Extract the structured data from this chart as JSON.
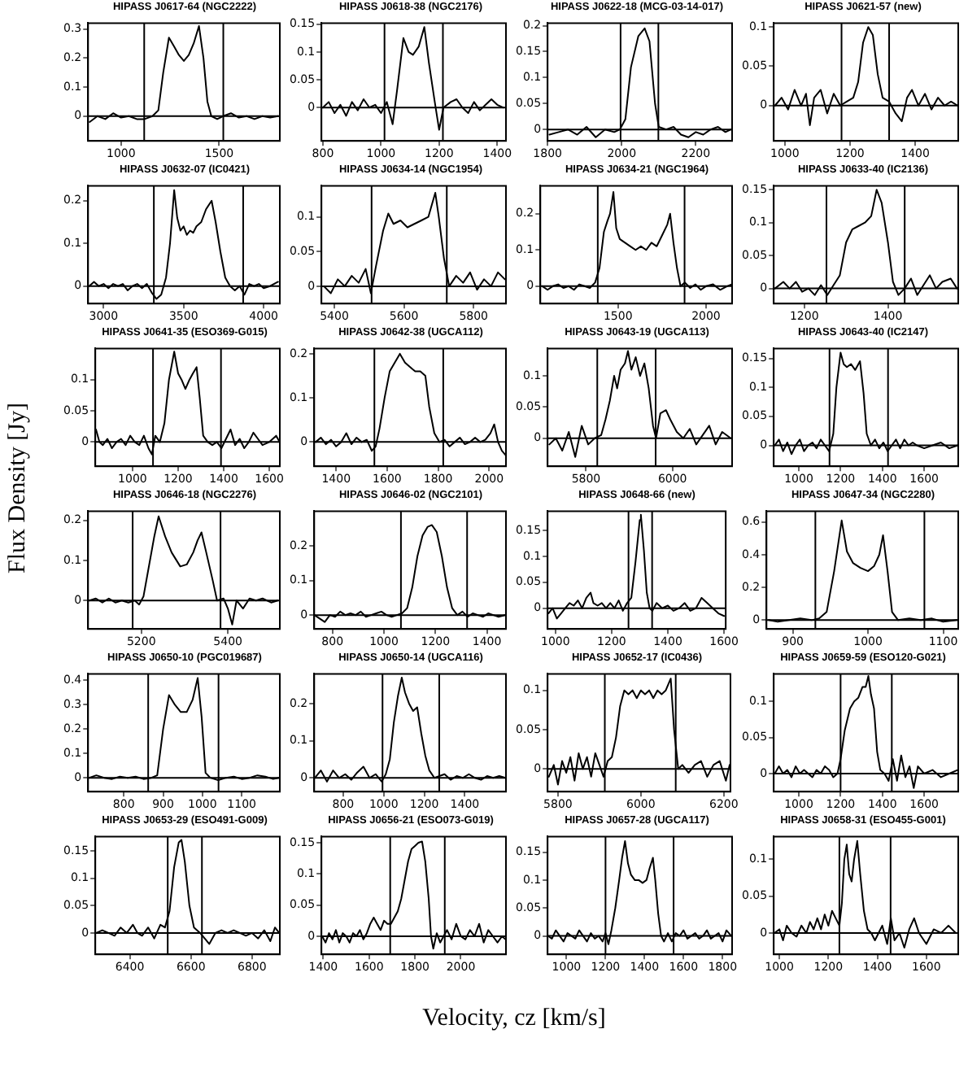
{
  "chart_data": [
    {
      "type": "line",
      "title": "HIPASS J0617-64 (NGC2222)",
      "color": "#000000",
      "xlim": [
        832,
        1809
      ],
      "xticks": [
        1000,
        1500
      ],
      "ylim": [
        -0.085,
        0.32
      ],
      "yticks": [
        0,
        0.1,
        0.2,
        0.3
      ],
      "ref_lines": [
        {
          "axis": "x",
          "value": 1118
        },
        {
          "axis": "x",
          "value": 1521
        },
        {
          "axis": "y",
          "value": 0
        }
      ],
      "x": [
        840,
        880,
        920,
        960,
        1000,
        1040,
        1080,
        1120,
        1160,
        1190,
        1215,
        1244,
        1270,
        1295,
        1320,
        1345,
        1370,
        1397,
        1420,
        1440,
        1460,
        1490,
        1520,
        1560,
        1600,
        1640,
        1680,
        1720,
        1760,
        1800
      ],
      "values": [
        -0.02,
        0,
        -0.01,
        0.01,
        -0.005,
        0,
        -0.01,
        -0.01,
        0,
        0.02,
        0.15,
        0.27,
        0.24,
        0.21,
        0.19,
        0.21,
        0.25,
        0.31,
        0.2,
        0.05,
        0,
        -0.01,
        0,
        0.01,
        -0.005,
        0,
        -0.01,
        0,
        -0.005,
        0
      ]
    },
    {
      "type": "line",
      "title": "HIPASS J0618-38 (NGC2176)",
      "color": "#000000",
      "xlim": [
        795,
        1430
      ],
      "xticks": [
        800,
        1000,
        1200,
        1400
      ],
      "ylim": [
        -0.06,
        0.152
      ],
      "yticks": [
        0,
        0.05,
        0.1,
        0.15
      ],
      "ref_lines": [
        {
          "axis": "x",
          "value": 1012
        },
        {
          "axis": "x",
          "value": 1213
        },
        {
          "axis": "y",
          "value": 0
        }
      ],
      "x": [
        800,
        820,
        840,
        860,
        880,
        900,
        920,
        940,
        960,
        980,
        1000,
        1020,
        1040,
        1055,
        1077,
        1095,
        1110,
        1130,
        1149,
        1165,
        1185,
        1200,
        1215,
        1240,
        1260,
        1280,
        1300,
        1320,
        1340,
        1360,
        1380,
        1400,
        1420
      ],
      "values": [
        0,
        0.01,
        -0.01,
        0.005,
        -0.015,
        0.01,
        -0.005,
        0.015,
        0,
        0.005,
        -0.01,
        0.01,
        -0.03,
        0.03,
        0.125,
        0.1,
        0.095,
        0.11,
        0.145,
        0.08,
        0.01,
        -0.04,
        0,
        0.01,
        0.015,
        0,
        -0.01,
        0.01,
        -0.005,
        0.005,
        0.015,
        0.005,
        0
      ]
    },
    {
      "type": "line",
      "title": "HIPASS J0622-18 (MCG-03-14-017)",
      "color": "#000000",
      "xlim": [
        1800,
        2298
      ],
      "xticks": [
        1800,
        2000,
        2200
      ],
      "ylim": [
        -0.022,
        0.205
      ],
      "yticks": [
        0,
        0.05,
        0.1,
        0.15,
        0.2
      ],
      "ref_lines": [
        {
          "axis": "x",
          "value": 1997
        },
        {
          "axis": "x",
          "value": 2099
        },
        {
          "axis": "y",
          "value": 0
        }
      ],
      "x": [
        1805,
        1830,
        1855,
        1880,
        1905,
        1930,
        1955,
        1980,
        1995,
        2010,
        2025,
        2045,
        2062,
        2075,
        2090,
        2100,
        2120,
        2140,
        2160,
        2180,
        2200,
        2220,
        2240,
        2260,
        2280,
        2295
      ],
      "values": [
        -0.01,
        -0.005,
        0,
        -0.01,
        0.005,
        -0.015,
        0,
        -0.005,
        0,
        0.02,
        0.12,
        0.18,
        0.195,
        0.17,
        0.05,
        0.005,
        0,
        0.005,
        -0.01,
        -0.015,
        -0.005,
        -0.01,
        0,
        0.005,
        -0.005,
        0
      ]
    },
    {
      "type": "line",
      "title": "HIPASS J0621-57 (new)",
      "color": "#000000",
      "xlim": [
        966,
        1532
      ],
      "xticks": [
        1000,
        1200,
        1400
      ],
      "ylim": [
        -0.045,
        0.105
      ],
      "yticks": [
        0,
        0.05,
        0.1
      ],
      "ref_lines": [
        {
          "axis": "x",
          "value": 1174
        },
        {
          "axis": "x",
          "value": 1320
        },
        {
          "axis": "y",
          "value": 0
        }
      ],
      "x": [
        970,
        990,
        1010,
        1030,
        1050,
        1065,
        1077,
        1090,
        1110,
        1130,
        1150,
        1170,
        1190,
        1210,
        1225,
        1240,
        1256,
        1270,
        1285,
        1300,
        1320,
        1340,
        1359,
        1375,
        1390,
        1410,
        1430,
        1450,
        1470,
        1490,
        1510,
        1530
      ],
      "values": [
        0,
        0.01,
        -0.005,
        0.02,
        0,
        0.015,
        -0.025,
        0.01,
        0.02,
        -0.01,
        0.015,
        0,
        0.005,
        0.01,
        0.03,
        0.08,
        0.1,
        0.09,
        0.04,
        0.01,
        0.005,
        -0.01,
        -0.02,
        0.01,
        0.02,
        0,
        0.015,
        -0.005,
        0.01,
        0,
        0.005,
        0
      ]
    },
    {
      "type": "line",
      "title": "HIPASS J0632-07 (IC0421)",
      "color": "#000000",
      "xlim": [
        2903,
        4101
      ],
      "xticks": [
        3000,
        3500,
        4000
      ],
      "ylim": [
        -0.041,
        0.235
      ],
      "yticks": [
        0,
        0.1,
        0.2
      ],
      "ref_lines": [
        {
          "axis": "x",
          "value": 3314
        },
        {
          "axis": "x",
          "value": 3872
        },
        {
          "axis": "y",
          "value": 0
        }
      ],
      "x": [
        2910,
        2940,
        2970,
        3000,
        3030,
        3060,
        3090,
        3120,
        3150,
        3180,
        3210,
        3240,
        3270,
        3300,
        3330,
        3360,
        3390,
        3415,
        3441,
        3460,
        3480,
        3500,
        3520,
        3540,
        3560,
        3580,
        3610,
        3640,
        3675,
        3700,
        3730,
        3760,
        3790,
        3820,
        3850,
        3880,
        3910,
        3940,
        3970,
        4000,
        4040,
        4090
      ],
      "values": [
        0,
        0.01,
        0,
        0.005,
        -0.005,
        0.005,
        0,
        0.005,
        -0.01,
        0,
        0.005,
        -0.005,
        0.005,
        -0.015,
        -0.03,
        -0.02,
        0.02,
        0.1,
        0.225,
        0.16,
        0.13,
        0.14,
        0.12,
        0.13,
        0.125,
        0.14,
        0.15,
        0.18,
        0.2,
        0.15,
        0.08,
        0.02,
        0,
        -0.01,
        0,
        -0.02,
        0.005,
        0,
        0.005,
        -0.005,
        0,
        0.01
      ]
    },
    {
      "type": "line",
      "title": "HIPASS J0634-14 (NGC1954)",
      "color": "#000000",
      "xlim": [
        5363,
        5893
      ],
      "xticks": [
        5400,
        5600,
        5800
      ],
      "ylim": [
        -0.025,
        0.145
      ],
      "yticks": [
        0,
        0.05,
        0.1
      ],
      "ref_lines": [
        {
          "axis": "x",
          "value": 5507
        },
        {
          "axis": "x",
          "value": 5723
        },
        {
          "axis": "y",
          "value": 0
        }
      ],
      "x": [
        5370,
        5390,
        5410,
        5430,
        5450,
        5470,
        5490,
        5505,
        5520,
        5540,
        5555,
        5570,
        5590,
        5610,
        5630,
        5650,
        5670,
        5690,
        5700,
        5715,
        5730,
        5750,
        5770,
        5790,
        5810,
        5830,
        5850,
        5870,
        5890
      ],
      "values": [
        0,
        -0.01,
        0.01,
        0,
        0.015,
        0.005,
        0.025,
        -0.01,
        0.03,
        0.08,
        0.105,
        0.09,
        0.095,
        0.085,
        0.09,
        0.095,
        0.1,
        0.135,
        0.1,
        0.04,
        0,
        0.015,
        0.005,
        0.02,
        -0.005,
        0.01,
        0,
        0.02,
        0.01
      ]
    },
    {
      "type": "line",
      "title": "HIPASS J0634-21 (NGC1964)",
      "color": "#000000",
      "xlim": [
        1059,
        2148
      ],
      "xticks": [
        1500,
        2000
      ],
      "ylim": [
        -0.048,
        0.277
      ],
      "yticks": [
        0,
        0.1,
        0.2
      ],
      "ref_lines": [
        {
          "axis": "x",
          "value": 1385
        },
        {
          "axis": "x",
          "value": 1878
        },
        {
          "axis": "y",
          "value": 0
        }
      ],
      "x": [
        1070,
        1100,
        1130,
        1160,
        1190,
        1220,
        1250,
        1280,
        1310,
        1340,
        1370,
        1395,
        1420,
        1440,
        1455,
        1474,
        1490,
        1510,
        1540,
        1570,
        1600,
        1630,
        1660,
        1690,
        1720,
        1750,
        1780,
        1796,
        1815,
        1835,
        1855,
        1880,
        1910,
        1940,
        1970,
        2000,
        2040,
        2080,
        2120,
        2145
      ],
      "values": [
        0,
        -0.01,
        0,
        0.005,
        -0.005,
        0,
        -0.01,
        0.005,
        0,
        -0.005,
        0.01,
        0.05,
        0.15,
        0.18,
        0.2,
        0.26,
        0.16,
        0.13,
        0.12,
        0.11,
        0.1,
        0.11,
        0.1,
        0.12,
        0.11,
        0.14,
        0.17,
        0.2,
        0.12,
        0.05,
        0,
        0.01,
        -0.005,
        0.005,
        -0.01,
        0,
        0.005,
        -0.01,
        0,
        0.005
      ]
    },
    {
      "type": "line",
      "title": "HIPASS J0633-40 (IC2136)",
      "color": "#000000",
      "xlim": [
        1127,
        1568
      ],
      "xticks": [
        1200,
        1400
      ],
      "ylim": [
        -0.023,
        0.156
      ],
      "yticks": [
        0,
        0.05,
        0.1,
        0.15
      ],
      "ref_lines": [
        {
          "axis": "x",
          "value": 1253
        },
        {
          "axis": "x",
          "value": 1440
        },
        {
          "axis": "y",
          "value": 0
        }
      ],
      "x": [
        1130,
        1150,
        1165,
        1180,
        1195,
        1210,
        1225,
        1240,
        1255,
        1270,
        1285,
        1300,
        1315,
        1330,
        1345,
        1360,
        1373,
        1385,
        1400,
        1412,
        1425,
        1440,
        1455,
        1470,
        1485,
        1500,
        1515,
        1530,
        1550,
        1565
      ],
      "values": [
        0,
        0.01,
        0,
        0.01,
        -0.005,
        0,
        -0.01,
        0.005,
        -0.01,
        0.005,
        0.02,
        0.07,
        0.09,
        0.095,
        0.1,
        0.11,
        0.15,
        0.13,
        0.07,
        0.01,
        -0.01,
        0,
        0.015,
        -0.01,
        0.005,
        0.02,
        0,
        0.01,
        0.015,
        0
      ]
    },
    {
      "type": "line",
      "title": "HIPASS J0641-35 (ESO369-G015)",
      "ylabel": "Flux Density  [Jy]",
      "color": "#000000",
      "xlim": [
        837,
        1646
      ],
      "xticks": [
        1000,
        1200,
        1400,
        1600
      ],
      "ylim": [
        -0.039,
        0.15
      ],
      "yticks": [
        0,
        0.05,
        0.1
      ],
      "ref_lines": [
        {
          "axis": "x",
          "value": 1090
        },
        {
          "axis": "x",
          "value": 1388
        },
        {
          "axis": "y",
          "value": 0
        }
      ],
      "x": [
        840,
        855,
        870,
        890,
        910,
        930,
        950,
        970,
        990,
        1010,
        1030,
        1050,
        1070,
        1085,
        1100,
        1120,
        1140,
        1160,
        1183,
        1200,
        1215,
        1232,
        1250,
        1265,
        1281,
        1295,
        1310,
        1330,
        1350,
        1370,
        1390,
        1410,
        1430,
        1450,
        1470,
        1490,
        1510,
        1530,
        1550,
        1570,
        1600,
        1630,
        1645
      ],
      "values": [
        0.02,
        0,
        -0.005,
        0.005,
        -0.01,
        0,
        0.005,
        -0.005,
        0.01,
        0,
        -0.005,
        0.01,
        -0.01,
        -0.02,
        0.01,
        0,
        0.03,
        0.1,
        0.145,
        0.11,
        0.1,
        0.085,
        0.1,
        0.11,
        0.12,
        0.07,
        0.01,
        0,
        -0.005,
        0,
        -0.01,
        0.005,
        0.02,
        -0.005,
        0.005,
        -0.01,
        0,
        0.015,
        0.005,
        -0.005,
        0,
        0.01,
        0
      ]
    },
    {
      "type": "line",
      "title": "HIPASS J0642-38 (UGCA112)",
      "color": "#000000",
      "xlim": [
        1314,
        2066
      ],
      "xticks": [
        1400,
        1600,
        1800,
        2000
      ],
      "ylim": [
        -0.055,
        0.212
      ],
      "yticks": [
        0,
        0.1,
        0.2
      ],
      "ref_lines": [
        {
          "axis": "x",
          "value": 1550
        },
        {
          "axis": "x",
          "value": 1820
        },
        {
          "axis": "y",
          "value": 0
        }
      ],
      "x": [
        1320,
        1340,
        1360,
        1380,
        1400,
        1420,
        1440,
        1460,
        1480,
        1500,
        1520,
        1540,
        1555,
        1570,
        1590,
        1610,
        1630,
        1650,
        1670,
        1690,
        1710,
        1730,
        1750,
        1765,
        1785,
        1805,
        1825,
        1845,
        1865,
        1885,
        1905,
        1925,
        1945,
        1965,
        1985,
        2005,
        2020,
        2035,
        2050,
        2065
      ],
      "values": [
        0,
        0.01,
        -0.005,
        0.005,
        -0.01,
        0,
        0.02,
        -0.005,
        0.01,
        0,
        0.005,
        -0.02,
        -0.01,
        0.03,
        0.1,
        0.16,
        0.18,
        0.2,
        0.18,
        0.17,
        0.16,
        0.16,
        0.15,
        0.08,
        0.02,
        0,
        0.005,
        -0.01,
        0,
        0.01,
        -0.005,
        0,
        0.01,
        0,
        0.005,
        0.02,
        0.04,
        0,
        -0.02,
        -0.03
      ]
    },
    {
      "type": "line",
      "title": "HIPASS J0643-19 (UGCA113)",
      "color": "#000000",
      "xlim": [
        5711,
        6138
      ],
      "xticks": [
        5800,
        6000
      ],
      "ylim": [
        -0.045,
        0.144
      ],
      "yticks": [
        0,
        0.05,
        0.1
      ],
      "ref_lines": [
        {
          "axis": "x",
          "value": 5826
        },
        {
          "axis": "x",
          "value": 5961
        },
        {
          "axis": "y",
          "value": 0
        }
      ],
      "x": [
        5715,
        5730,
        5745,
        5760,
        5775,
        5790,
        5805,
        5820,
        5835,
        5845,
        5855,
        5865,
        5872,
        5880,
        5890,
        5897,
        5905,
        5915,
        5925,
        5935,
        5945,
        5955,
        5962,
        5972,
        5985,
        5995,
        6010,
        6025,
        6040,
        6055,
        6070,
        6085,
        6100,
        6115,
        6135
      ],
      "values": [
        -0.01,
        0,
        -0.02,
        0.01,
        -0.03,
        0.02,
        -0.01,
        0,
        0.005,
        0.03,
        0.06,
        0.1,
        0.08,
        0.11,
        0.12,
        0.14,
        0.11,
        0.13,
        0.1,
        0.12,
        0.08,
        0.02,
        0,
        0.04,
        0.045,
        0.03,
        0.01,
        0,
        0.015,
        -0.01,
        0.005,
        0.02,
        -0.01,
        0.01,
        0
      ]
    },
    {
      "type": "line",
      "title": "HIPASS J0643-40 (IC2147)",
      "color": "#000000",
      "xlim": [
        880,
        1763
      ],
      "xticks": [
        1000,
        1200,
        1400,
        1600
      ],
      "ylim": [
        -0.036,
        0.167
      ],
      "yticks": [
        0,
        0.05,
        0.1,
        0.15
      ],
      "ref_lines": [
        {
          "axis": "x",
          "value": 1147
        },
        {
          "axis": "x",
          "value": 1427
        },
        {
          "axis": "y",
          "value": 0
        }
      ],
      "x": [
        885,
        905,
        925,
        945,
        965,
        985,
        1005,
        1025,
        1045,
        1065,
        1085,
        1105,
        1125,
        1145,
        1165,
        1180,
        1200,
        1215,
        1230,
        1250,
        1270,
        1293,
        1310,
        1325,
        1345,
        1365,
        1385,
        1405,
        1425,
        1445,
        1465,
        1485,
        1505,
        1525,
        1545,
        1565,
        1600,
        1640,
        1680,
        1720,
        1760
      ],
      "values": [
        0,
        0.01,
        -0.01,
        0.005,
        -0.015,
        0,
        0.01,
        -0.01,
        0,
        0.005,
        -0.005,
        0.01,
        0,
        -0.01,
        0.02,
        0.1,
        0.16,
        0.14,
        0.135,
        0.14,
        0.13,
        0.145,
        0.09,
        0.02,
        0,
        0.01,
        -0.005,
        0.005,
        -0.01,
        0,
        0.01,
        -0.005,
        0.01,
        0,
        0.005,
        0,
        -0.005,
        0,
        0.005,
        -0.005,
        0
      ]
    },
    {
      "type": "line",
      "title": "HIPASS J0646-18 (NGC2276)",
      "color": "#000000",
      "xlim": [
        5077,
        5520
      ],
      "xticks": [
        5200,
        5400
      ],
      "ylim": [
        -0.071,
        0.223
      ],
      "yticks": [
        0,
        0.1,
        0.2
      ],
      "ref_lines": [
        {
          "axis": "x",
          "value": 5180
        },
        {
          "axis": "x",
          "value": 5383
        },
        {
          "axis": "y",
          "value": 0
        }
      ],
      "x": [
        5080,
        5095,
        5110,
        5125,
        5140,
        5155,
        5170,
        5185,
        5195,
        5205,
        5215,
        5230,
        5240,
        5255,
        5270,
        5290,
        5305,
        5320,
        5330,
        5339,
        5350,
        5365,
        5375,
        5390,
        5400,
        5410,
        5420,
        5435,
        5450,
        5465,
        5480,
        5500,
        5515
      ],
      "values": [
        0,
        0.005,
        -0.005,
        0.005,
        -0.005,
        0,
        -0.005,
        0,
        -0.01,
        0.01,
        0.07,
        0.16,
        0.21,
        0.16,
        0.12,
        0.085,
        0.09,
        0.12,
        0.15,
        0.17,
        0.12,
        0.05,
        0,
        0.005,
        -0.02,
        -0.06,
        0,
        -0.02,
        0.005,
        0,
        0.005,
        -0.005,
        0
      ]
    },
    {
      "type": "line",
      "title": "HIPASS J0646-02 (NGC2101)",
      "color": "#000000",
      "xlim": [
        729,
        1474
      ],
      "xticks": [
        800,
        1000,
        1200,
        1400
      ],
      "ylim": [
        -0.04,
        0.3
      ],
      "yticks": [
        0,
        0.1,
        0.2
      ],
      "ref_lines": [
        {
          "axis": "x",
          "value": 1066
        },
        {
          "axis": "x",
          "value": 1323
        },
        {
          "axis": "y",
          "value": 0
        }
      ],
      "x": [
        730,
        750,
        770,
        790,
        810,
        830,
        850,
        870,
        890,
        910,
        930,
        950,
        970,
        990,
        1010,
        1030,
        1050,
        1070,
        1090,
        1110,
        1130,
        1150,
        1170,
        1186,
        1205,
        1225,
        1245,
        1265,
        1285,
        1305,
        1325,
        1345,
        1365,
        1385,
        1405,
        1425,
        1445,
        1470
      ],
      "values": [
        0,
        -0.01,
        -0.02,
        0,
        -0.005,
        0.01,
        0,
        0.005,
        0,
        0.01,
        -0.005,
        0,
        0.005,
        0.01,
        0,
        -0.005,
        0,
        0.005,
        0.02,
        0.08,
        0.17,
        0.23,
        0.255,
        0.26,
        0.24,
        0.17,
        0.08,
        0.02,
        0,
        0.01,
        -0.005,
        0.005,
        0,
        -0.005,
        0.005,
        0,
        -0.005,
        0
      ]
    },
    {
      "type": "line",
      "title": "HIPASS J0648-66 (new)",
      "color": "#000000",
      "xlim": [
        972,
        1606
      ],
      "xticks": [
        1000,
        1200,
        1400,
        1600
      ],
      "ylim": [
        -0.04,
        0.187
      ],
      "yticks": [
        0,
        0.05,
        0.1,
        0.15
      ],
      "ref_lines": [
        {
          "axis": "x",
          "value": 1260
        },
        {
          "axis": "x",
          "value": 1344
        },
        {
          "axis": "y",
          "value": 0
        }
      ],
      "x": [
        975,
        990,
        1005,
        1020,
        1035,
        1050,
        1065,
        1080,
        1095,
        1110,
        1125,
        1135,
        1150,
        1165,
        1180,
        1195,
        1210,
        1225,
        1240,
        1255,
        1270,
        1285,
        1300,
        1304,
        1315,
        1325,
        1335,
        1345,
        1360,
        1380,
        1400,
        1420,
        1440,
        1460,
        1480,
        1500,
        1520,
        1540,
        1560,
        1580,
        1600
      ],
      "values": [
        -0.01,
        0,
        -0.02,
        -0.01,
        0,
        0.01,
        0.005,
        0.015,
        0,
        0.02,
        0.03,
        0.01,
        0.005,
        0.01,
        0,
        0.01,
        0,
        0.015,
        -0.005,
        0.01,
        0.02,
        0.09,
        0.17,
        0.18,
        0.11,
        0.03,
        0,
        -0.005,
        0.01,
        0,
        0.005,
        -0.005,
        0,
        0.01,
        -0.005,
        0,
        0.02,
        0.01,
        0,
        -0.01,
        -0.015
      ]
    },
    {
      "type": "line",
      "title": "HIPASS J0647-34 (NGC2280)",
      "color": "#000000",
      "xlim": [
        865,
        1120
      ],
      "xticks": [
        900,
        1000,
        1100
      ],
      "ylim": [
        -0.054,
        0.667
      ],
      "yticks": [
        0,
        0.2,
        0.4,
        0.6
      ],
      "ref_lines": [
        {
          "axis": "x",
          "value": 930
        },
        {
          "axis": "x",
          "value": 1075
        },
        {
          "axis": "y",
          "value": 0
        }
      ],
      "x": [
        868,
        880,
        895,
        910,
        925,
        935,
        945,
        955,
        965,
        972,
        980,
        990,
        1000,
        1008,
        1015,
        1020,
        1026,
        1032,
        1040,
        1055,
        1070,
        1085,
        1100,
        1118
      ],
      "values": [
        0,
        -0.01,
        0,
        0.01,
        0,
        0.01,
        0.05,
        0.3,
        0.61,
        0.42,
        0.35,
        0.32,
        0.3,
        0.33,
        0.4,
        0.52,
        0.3,
        0.05,
        0,
        0.01,
        0,
        0.01,
        -0.01,
        0
      ]
    },
    {
      "type": "line",
      "title": "HIPASS J0650-10 (PGC019687)",
      "color": "#000000",
      "xlim": [
        709,
        1197
      ],
      "xticks": [
        800,
        900,
        1000,
        1100
      ],
      "ylim": [
        -0.057,
        0.427
      ],
      "yticks": [
        0,
        0.1,
        0.2,
        0.3,
        0.4
      ],
      "ref_lines": [
        {
          "axis": "x",
          "value": 862
        },
        {
          "axis": "x",
          "value": 1041
        },
        {
          "axis": "y",
          "value": 0
        }
      ],
      "x": [
        712,
        730,
        750,
        770,
        790,
        810,
        830,
        850,
        870,
        885,
        900,
        915,
        930,
        945,
        960,
        975,
        988,
        998,
        1008,
        1020,
        1040,
        1060,
        1080,
        1100,
        1120,
        1140,
        1160,
        1180,
        1195
      ],
      "values": [
        0,
        0.01,
        0,
        -0.005,
        0.005,
        0,
        0.005,
        -0.005,
        0,
        0.01,
        0.2,
        0.34,
        0.3,
        0.27,
        0.27,
        0.32,
        0.41,
        0.25,
        0.02,
        0,
        -0.01,
        0,
        0.005,
        -0.005,
        0,
        0.01,
        0.005,
        -0.005,
        0
      ]
    },
    {
      "type": "line",
      "title": "HIPASS J0650-14 (UGCA116)",
      "color": "#000000",
      "xlim": [
        657,
        1603
      ],
      "xticks": [
        800,
        1000,
        1200,
        1400
      ],
      "ylim": [
        -0.037,
        0.28
      ],
      "yticks": [
        0,
        0.1,
        0.2
      ],
      "ref_lines": [
        {
          "axis": "x",
          "value": 994
        },
        {
          "axis": "x",
          "value": 1274
        },
        {
          "axis": "y",
          "value": 0
        }
      ],
      "x": [
        660,
        690,
        720,
        750,
        780,
        810,
        840,
        870,
        900,
        930,
        960,
        990,
        1010,
        1030,
        1050,
        1070,
        1089,
        1105,
        1125,
        1145,
        1165,
        1185,
        1205,
        1225,
        1250,
        1275,
        1300,
        1330,
        1360,
        1390,
        1420,
        1450,
        1480,
        1510,
        1540,
        1570,
        1600
      ],
      "values": [
        0,
        0.02,
        -0.01,
        0.02,
        0,
        0.01,
        -0.005,
        0.015,
        0.03,
        0,
        0.01,
        -0.01,
        0.01,
        0.05,
        0.15,
        0.22,
        0.27,
        0.23,
        0.2,
        0.18,
        0.19,
        0.12,
        0.06,
        0.02,
        0,
        0.005,
        0.01,
        -0.005,
        0.005,
        0,
        0.01,
        0,
        -0.005,
        0.005,
        0,
        0.005,
        0
      ]
    },
    {
      "type": "line",
      "title": "HIPASS J0652-17 (IC0436)",
      "color": "#000000",
      "xlim": [
        5775,
        6216
      ],
      "xticks": [
        5800,
        6000,
        6200
      ],
      "ylim": [
        -0.029,
        0.121
      ],
      "yticks": [
        0,
        0.05,
        0.1
      ],
      "ref_lines": [
        {
          "axis": "x",
          "value": 5913
        },
        {
          "axis": "x",
          "value": 6084
        },
        {
          "axis": "y",
          "value": 0
        }
      ],
      "x": [
        5778,
        5790,
        5800,
        5810,
        5820,
        5830,
        5840,
        5850,
        5860,
        5870,
        5880,
        5890,
        5900,
        5910,
        5920,
        5930,
        5940,
        5950,
        5960,
        5970,
        5980,
        5990,
        6000,
        6010,
        6020,
        6030,
        6040,
        6050,
        6060,
        6072,
        6080,
        6090,
        6100,
        6115,
        6130,
        6145,
        6160,
        6175,
        6190,
        6205,
        6214
      ],
      "values": [
        -0.01,
        0.005,
        -0.02,
        0.01,
        -0.005,
        0.015,
        -0.015,
        0.02,
        0,
        0.015,
        -0.01,
        0.02,
        0.005,
        -0.01,
        0.01,
        0.015,
        0.04,
        0.08,
        0.1,
        0.095,
        0.1,
        0.09,
        0.1,
        0.095,
        0.1,
        0.09,
        0.1,
        0.095,
        0.1,
        0.115,
        0.05,
        0,
        0.005,
        -0.005,
        0.005,
        0.01,
        -0.01,
        0.005,
        0.01,
        -0.015,
        0.005
      ]
    },
    {
      "type": "line",
      "title": "HIPASS J0659-59 (ESO120-G021)",
      "color": "#000000",
      "xlim": [
        880,
        1763
      ],
      "xticks": [
        1000,
        1200,
        1400,
        1600
      ],
      "ylim": [
        -0.025,
        0.138
      ],
      "yticks": [
        0,
        0.05,
        0.1
      ],
      "ref_lines": [
        {
          "axis": "x",
          "value": 1200
        },
        {
          "axis": "x",
          "value": 1445
        },
        {
          "axis": "y",
          "value": 0
        }
      ],
      "x": [
        885,
        905,
        925,
        945,
        965,
        985,
        1005,
        1025,
        1045,
        1065,
        1085,
        1105,
        1125,
        1145,
        1165,
        1185,
        1200,
        1220,
        1245,
        1265,
        1285,
        1305,
        1320,
        1333,
        1345,
        1360,
        1375,
        1390,
        1410,
        1430,
        1450,
        1470,
        1490,
        1510,
        1530,
        1550,
        1570,
        1600,
        1640,
        1680,
        1720,
        1760
      ],
      "values": [
        0,
        0.01,
        0,
        0.005,
        -0.005,
        0.01,
        0,
        0.005,
        0,
        -0.005,
        0.005,
        0,
        0.01,
        0.005,
        -0.005,
        0,
        0.02,
        0.06,
        0.09,
        0.1,
        0.105,
        0.12,
        0.12,
        0.135,
        0.11,
        0.09,
        0.03,
        0.005,
        0,
        -0.01,
        0.02,
        -0.01,
        0.025,
        -0.005,
        0.01,
        -0.02,
        0.01,
        0,
        0.005,
        -0.005,
        0,
        0.005
      ]
    },
    {
      "type": "line",
      "title": "HIPASS J0653-29 (ESO491-G009)",
      "color": "#000000",
      "xlim": [
        6287,
        6891
      ],
      "xticks": [
        6400,
        6600,
        6800
      ],
      "ylim": [
        -0.039,
        0.176
      ],
      "yticks": [
        0,
        0.05,
        0.1,
        0.15
      ],
      "ref_lines": [
        {
          "axis": "x",
          "value": 6524
        },
        {
          "axis": "x",
          "value": 6636
        },
        {
          "axis": "y",
          "value": 0
        }
      ],
      "x": [
        6290,
        6310,
        6330,
        6350,
        6370,
        6390,
        6410,
        6425,
        6440,
        6460,
        6480,
        6500,
        6515,
        6530,
        6545,
        6560,
        6569,
        6580,
        6595,
        6610,
        6630,
        6645,
        6660,
        6680,
        6700,
        6720,
        6740,
        6760,
        6780,
        6800,
        6820,
        6840,
        6860,
        6875,
        6889
      ],
      "values": [
        0,
        0.005,
        0,
        -0.005,
        0.01,
        0,
        0.015,
        0,
        -0.005,
        0.01,
        -0.01,
        0.015,
        0.01,
        0.04,
        0.12,
        0.165,
        0.17,
        0.13,
        0.05,
        0.01,
        0,
        -0.01,
        -0.02,
        0,
        0.005,
        0,
        0.005,
        0,
        -0.005,
        0,
        -0.01,
        0.005,
        -0.015,
        0.01,
        0
      ]
    },
    {
      "type": "line",
      "title": "HIPASS J0656-21 (ESO073-G019)",
      "xlabel": "Velocity, cz [km/s]",
      "color": "#000000",
      "xlim": [
        1392,
        2197
      ],
      "xticks": [
        1400,
        1600,
        1800,
        2000
      ],
      "ylim": [
        -0.029,
        0.16
      ],
      "yticks": [
        0,
        0.05,
        0.1,
        0.15
      ],
      "ref_lines": [
        {
          "axis": "x",
          "value": 1692
        },
        {
          "axis": "x",
          "value": 1930
        },
        {
          "axis": "y",
          "value": 0
        }
      ],
      "x": [
        1395,
        1410,
        1425,
        1440,
        1455,
        1470,
        1485,
        1500,
        1515,
        1530,
        1545,
        1560,
        1575,
        1590,
        1605,
        1620,
        1635,
        1650,
        1665,
        1680,
        1695,
        1710,
        1725,
        1740,
        1755,
        1770,
        1785,
        1800,
        1815,
        1831,
        1845,
        1860,
        1870,
        1880,
        1895,
        1910,
        1925,
        1940,
        1960,
        1980,
        2000,
        2020,
        2040,
        2060,
        2080,
        2100,
        2120,
        2140,
        2160,
        2180,
        2195
      ],
      "values": [
        0,
        -0.01,
        0.005,
        -0.005,
        0.01,
        -0.01,
        0.005,
        0,
        -0.01,
        0.005,
        0,
        0.01,
        -0.005,
        0.005,
        0.02,
        0.03,
        0.02,
        0.01,
        0.025,
        0.02,
        0.02,
        0.03,
        0.04,
        0.06,
        0.09,
        0.12,
        0.14,
        0.145,
        0.15,
        0.152,
        0.12,
        0.06,
        0,
        -0.02,
        0.005,
        -0.01,
        0,
        0.01,
        -0.005,
        0.02,
        0,
        -0.005,
        0.01,
        0,
        0.02,
        -0.01,
        0.01,
        0,
        -0.01,
        0,
        -0.005
      ]
    },
    {
      "type": "line",
      "title": "HIPASS J0657-28 (UGCA117)",
      "color": "#000000",
      "xlim": [
        903,
        1849
      ],
      "xticks": [
        1000,
        1200,
        1400,
        1600,
        1800
      ],
      "ylim": [
        -0.033,
        0.178
      ],
      "yticks": [
        0,
        0.05,
        0.1,
        0.15
      ],
      "ref_lines": [
        {
          "axis": "x",
          "value": 1200
        },
        {
          "axis": "x",
          "value": 1549
        },
        {
          "axis": "y",
          "value": 0
        }
      ],
      "x": [
        905,
        925,
        945,
        965,
        985,
        1005,
        1025,
        1045,
        1065,
        1085,
        1105,
        1125,
        1145,
        1165,
        1185,
        1200,
        1215,
        1230,
        1250,
        1270,
        1285,
        1300,
        1315,
        1330,
        1350,
        1370,
        1390,
        1410,
        1425,
        1443,
        1455,
        1470,
        1485,
        1500,
        1520,
        1540,
        1560,
        1580,
        1600,
        1620,
        1640,
        1660,
        1680,
        1700,
        1720,
        1740,
        1760,
        1780,
        1800,
        1820,
        1845
      ],
      "values": [
        0,
        -0.005,
        0.01,
        0,
        -0.01,
        0.005,
        0,
        -0.005,
        0.01,
        0,
        -0.01,
        0.005,
        -0.005,
        0,
        -0.01,
        0.005,
        -0.015,
        0.01,
        0.05,
        0.1,
        0.14,
        0.17,
        0.13,
        0.11,
        0.1,
        0.1,
        0.095,
        0.1,
        0.12,
        0.14,
        0.1,
        0.04,
        0,
        -0.01,
        0.005,
        -0.01,
        0.005,
        0,
        0.01,
        -0.005,
        0,
        0.005,
        -0.005,
        0,
        0.01,
        -0.005,
        0,
        0.005,
        -0.01,
        0.01,
        0
      ]
    },
    {
      "type": "line",
      "title": "HIPASS J0658-31 (ESO455-G001)",
      "color": "#000000",
      "xlim": [
        977,
        1730
      ],
      "xticks": [
        1000,
        1200,
        1400,
        1600
      ],
      "ylim": [
        -0.029,
        0.131
      ],
      "yticks": [
        0,
        0.05,
        0.1
      ],
      "ref_lines": [
        {
          "axis": "x",
          "value": 1245
        },
        {
          "axis": "x",
          "value": 1454
        },
        {
          "axis": "y",
          "value": 0
        }
      ],
      "x": [
        980,
        1000,
        1015,
        1030,
        1050,
        1070,
        1090,
        1110,
        1125,
        1140,
        1155,
        1170,
        1185,
        1200,
        1215,
        1230,
        1245,
        1255,
        1265,
        1275,
        1285,
        1295,
        1305,
        1318,
        1330,
        1345,
        1360,
        1375,
        1390,
        1405,
        1420,
        1440,
        1455,
        1470,
        1490,
        1510,
        1530,
        1550,
        1570,
        1600,
        1630,
        1660,
        1690,
        1720
      ],
      "values": [
        0,
        0.005,
        -0.01,
        0.01,
        0,
        -0.005,
        0.01,
        0,
        0.015,
        0.005,
        0.02,
        0.005,
        0.025,
        0.01,
        0.03,
        0.02,
        0.01,
        0.04,
        0.1,
        0.12,
        0.08,
        0.07,
        0.1,
        0.125,
        0.08,
        0.03,
        0.005,
        0,
        -0.01,
        0,
        0.01,
        -0.015,
        0.02,
        -0.01,
        0,
        -0.02,
        0.005,
        0.02,
        0,
        -0.015,
        0.005,
        0,
        0.01,
        0
      ]
    }
  ]
}
